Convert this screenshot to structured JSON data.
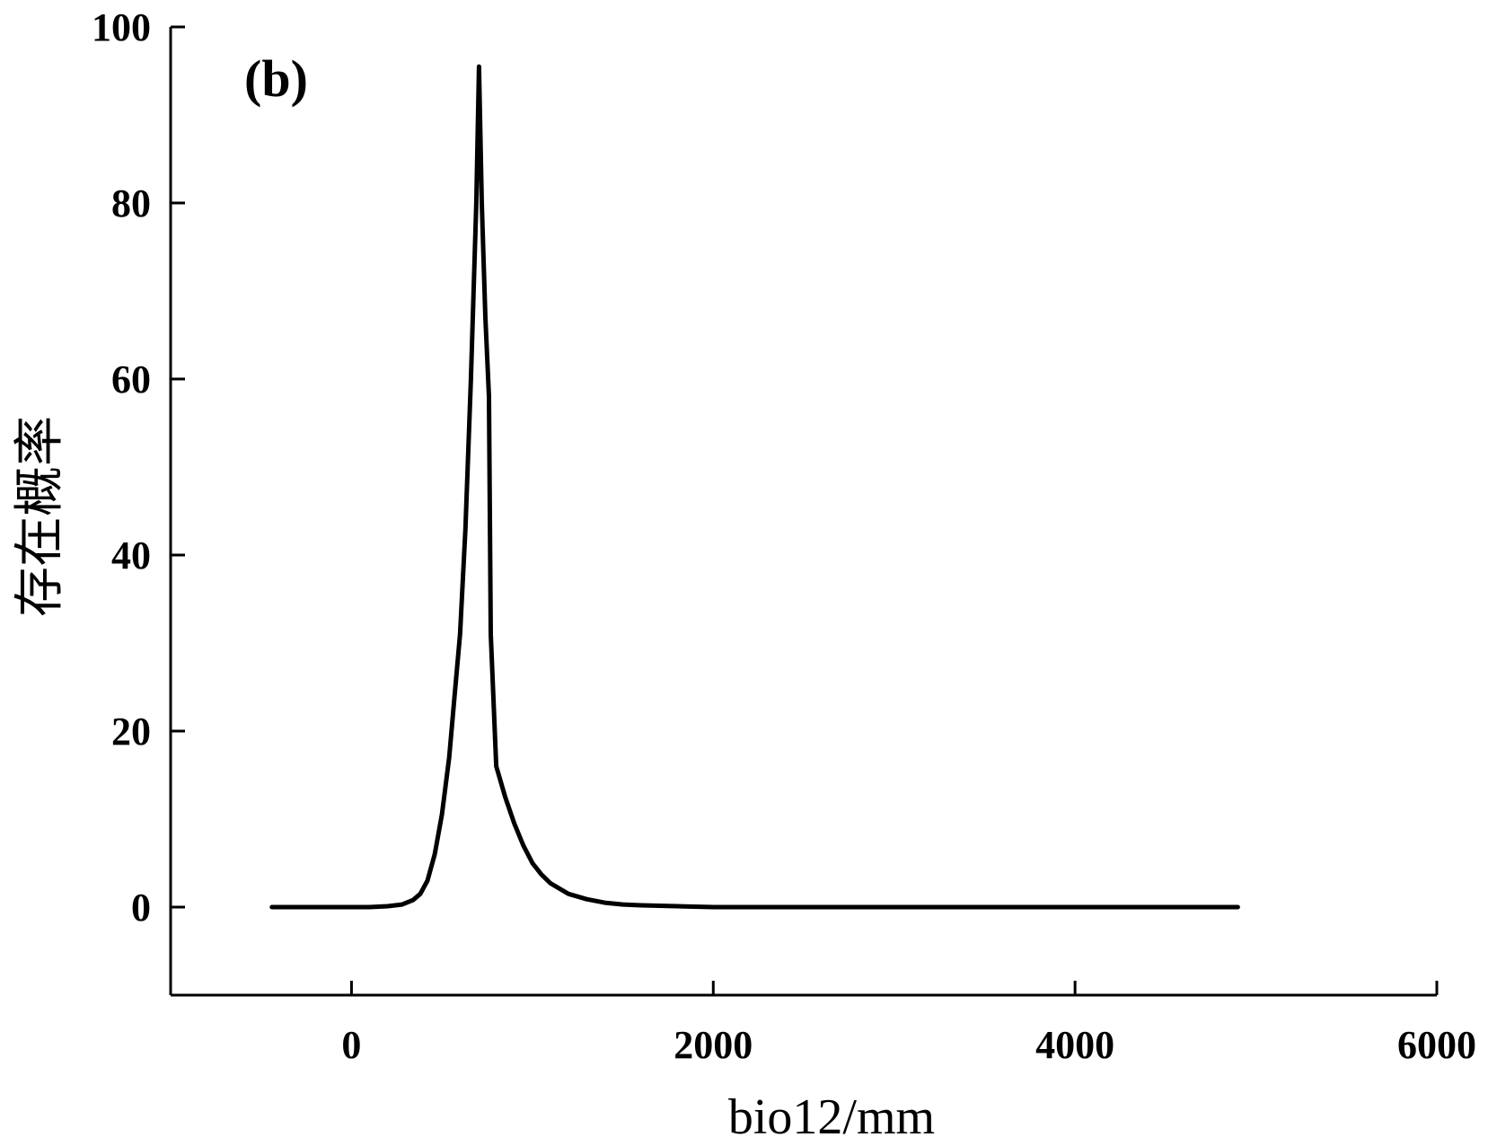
{
  "chart_data": {
    "type": "line",
    "panel_label": "(b)",
    "xlabel": "bio12/mm",
    "ylabel": "存在概率",
    "xlim": [
      -1000,
      6000
    ],
    "ylim": [
      -10,
      100
    ],
    "x_ticks": [
      0,
      2000,
      4000,
      6000
    ],
    "y_ticks": [
      0,
      20,
      40,
      60,
      80,
      100
    ],
    "x_tick_labels": [
      "0",
      "2000",
      "4000",
      "6000"
    ],
    "y_tick_labels": [
      "0",
      "20",
      "40",
      "60",
      "80",
      "100"
    ],
    "grid": false,
    "line_color": "#000000",
    "series": [
      {
        "x": [
          -440,
          -200,
          0,
          100,
          200,
          280,
          340,
          380,
          420,
          460,
          500,
          540,
          570,
          600,
          630,
          660,
          690,
          705,
          720,
          740,
          760,
          770,
          800,
          850,
          900,
          950,
          1000,
          1050,
          1100,
          1200,
          1300,
          1400,
          1500,
          1600,
          1800,
          2000,
          2500,
          3000,
          4000,
          4900
        ],
        "y": [
          0,
          0,
          0,
          0,
          0.1,
          0.3,
          0.8,
          1.5,
          3,
          6,
          10.5,
          17,
          24,
          31,
          43,
          60,
          80,
          95.5,
          80,
          67,
          58,
          31,
          16,
          12.5,
          9.5,
          7,
          5,
          3.7,
          2.7,
          1.5,
          0.9,
          0.5,
          0.3,
          0.2,
          0.1,
          0,
          0,
          0,
          0,
          0
        ]
      }
    ]
  }
}
